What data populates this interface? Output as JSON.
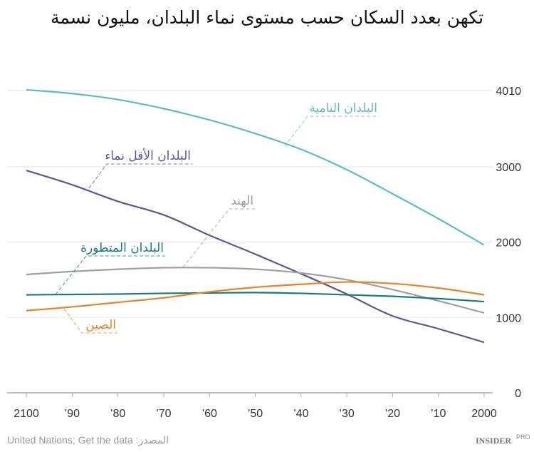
{
  "chart_data": {
    "type": "line",
    "title": "تكهن بعدد السكان حسب مستوى نماء البلدان، مليون نسمة",
    "x": [
      2100,
      2090,
      2080,
      2070,
      2060,
      2050,
      2040,
      2030,
      2020,
      2010,
      2000
    ],
    "x_tick_labels": [
      "2100",
      "’90",
      "’80",
      "’70",
      "’60",
      "’50",
      "’40",
      "’30",
      "’20",
      "’10",
      "2000"
    ],
    "x_reversed": true,
    "y_ticks": [
      0,
      1000,
      2000,
      3000,
      4010
    ],
    "ylim": [
      0,
      4010
    ],
    "y_axis_side": "right",
    "grid": true,
    "series": [
      {
        "name": "البلدان النامية",
        "color": "#5bbcc4",
        "values": [
          4020,
          3970,
          3890,
          3770,
          3620,
          3440,
          3230,
          2960,
          2640,
          2310,
          1960
        ]
      },
      {
        "name": "البلدان الأقل نماء",
        "color": "#5e5697",
        "values": [
          2950,
          2760,
          2540,
          2360,
          2090,
          1840,
          1580,
          1310,
          1020,
          850,
          670
        ]
      },
      {
        "name": "الهند",
        "color": "#a0a0a0",
        "values": [
          1570,
          1610,
          1640,
          1660,
          1660,
          1640,
          1590,
          1500,
          1370,
          1220,
          1060
        ]
      },
      {
        "name": "البلدان المتطورة",
        "color": "#167c7c",
        "values": [
          1300,
          1305,
          1310,
          1320,
          1325,
          1330,
          1320,
          1300,
          1280,
          1250,
          1210
        ]
      },
      {
        "name": "الصين",
        "color": "#e8832a",
        "values": [
          1090,
          1140,
          1200,
          1260,
          1340,
          1400,
          1440,
          1470,
          1450,
          1390,
          1300
        ]
      }
    ]
  },
  "footer": {
    "source": "United Nations; Get the data :المصدر",
    "brand": "INSIDER",
    "brand_sup": "PRO"
  }
}
